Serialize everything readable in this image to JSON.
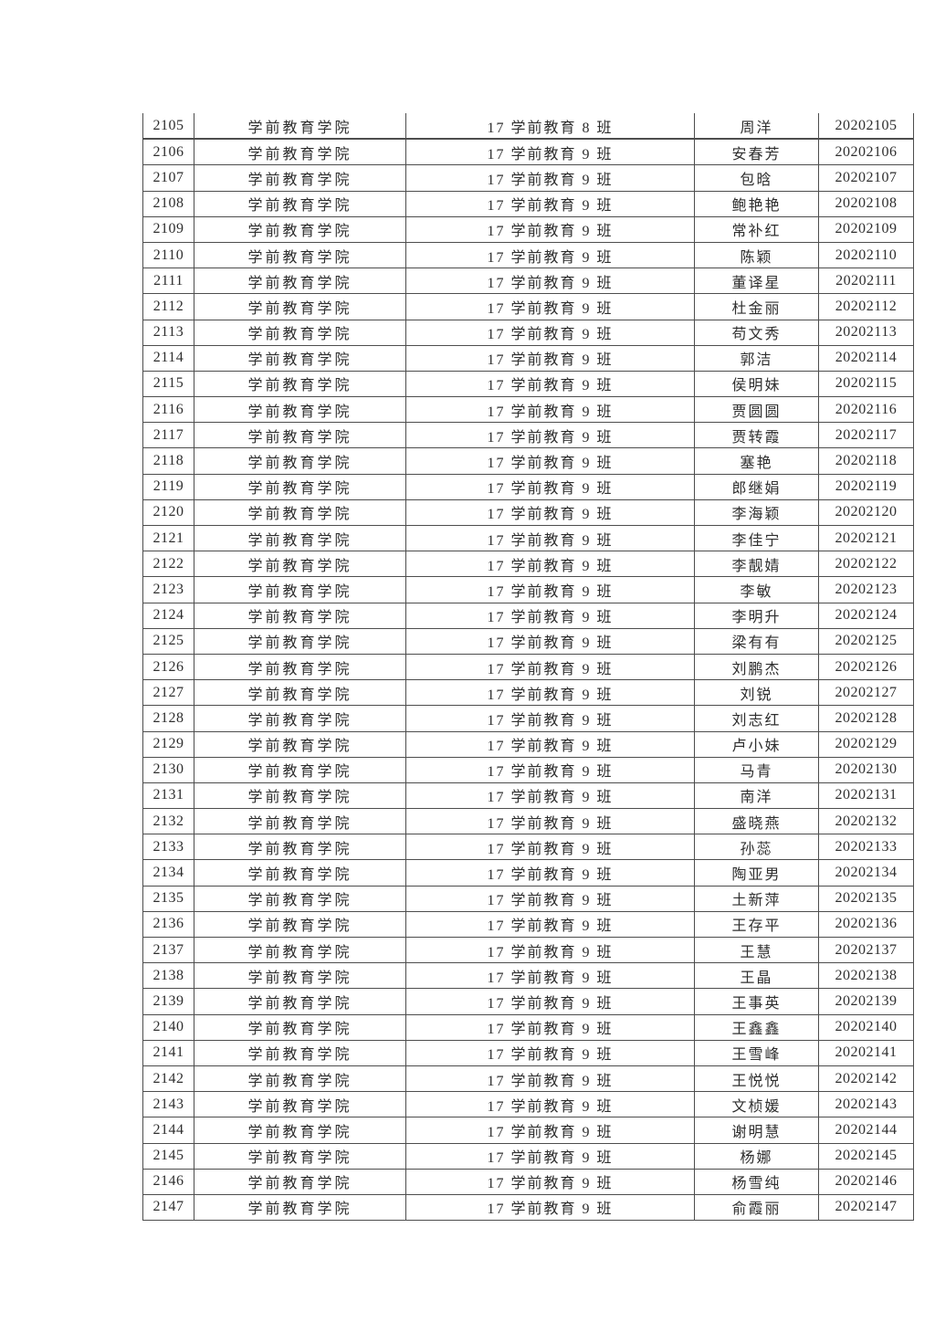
{
  "colors": {
    "background": "#ffffff",
    "text": "#2e2e2e",
    "table_border": "#4d4d4d"
  },
  "table": {
    "rows": [
      {
        "no": "2105",
        "college": "学前教育学院",
        "class": "17 学前教育 8 班",
        "name": "周洋",
        "student_id": "20202105"
      },
      {
        "no": "2106",
        "college": "学前教育学院",
        "class": "17 学前教育 9 班",
        "name": "安春芳",
        "student_id": "20202106"
      },
      {
        "no": "2107",
        "college": "学前教育学院",
        "class": "17 学前教育 9 班",
        "name": "包晗",
        "student_id": "20202107"
      },
      {
        "no": "2108",
        "college": "学前教育学院",
        "class": "17 学前教育 9 班",
        "name": "鲍艳艳",
        "student_id": "20202108"
      },
      {
        "no": "2109",
        "college": "学前教育学院",
        "class": "17 学前教育 9 班",
        "name": "常补红",
        "student_id": "20202109"
      },
      {
        "no": "2110",
        "college": "学前教育学院",
        "class": "17 学前教育 9 班",
        "name": "陈颖",
        "student_id": "20202110"
      },
      {
        "no": "2111",
        "college": "学前教育学院",
        "class": "17 学前教育 9 班",
        "name": "董译星",
        "student_id": "20202111"
      },
      {
        "no": "2112",
        "college": "学前教育学院",
        "class": "17 学前教育 9 班",
        "name": "杜金丽",
        "student_id": "20202112"
      },
      {
        "no": "2113",
        "college": "学前教育学院",
        "class": "17 学前教育 9 班",
        "name": "苟文秀",
        "student_id": "20202113"
      },
      {
        "no": "2114",
        "college": "学前教育学院",
        "class": "17 学前教育 9 班",
        "name": "郭洁",
        "student_id": "20202114"
      },
      {
        "no": "2115",
        "college": "学前教育学院",
        "class": "17 学前教育 9 班",
        "name": "侯明妹",
        "student_id": "20202115"
      },
      {
        "no": "2116",
        "college": "学前教育学院",
        "class": "17 学前教育 9 班",
        "name": "贾圆圆",
        "student_id": "20202116"
      },
      {
        "no": "2117",
        "college": "学前教育学院",
        "class": "17 学前教育 9 班",
        "name": "贾转霞",
        "student_id": "20202117"
      },
      {
        "no": "2118",
        "college": "学前教育学院",
        "class": "17 学前教育 9 班",
        "name": "塞艳",
        "student_id": "20202118"
      },
      {
        "no": "2119",
        "college": "学前教育学院",
        "class": "17 学前教育 9 班",
        "name": "郎继娟",
        "student_id": "20202119"
      },
      {
        "no": "2120",
        "college": "学前教育学院",
        "class": "17 学前教育 9 班",
        "name": "李海颖",
        "student_id": "20202120"
      },
      {
        "no": "2121",
        "college": "学前教育学院",
        "class": "17 学前教育 9 班",
        "name": "李佳宁",
        "student_id": "20202121"
      },
      {
        "no": "2122",
        "college": "学前教育学院",
        "class": "17 学前教育 9 班",
        "name": "李靓婧",
        "student_id": "20202122"
      },
      {
        "no": "2123",
        "college": "学前教育学院",
        "class": "17 学前教育 9 班",
        "name": "李敏",
        "student_id": "20202123"
      },
      {
        "no": "2124",
        "college": "学前教育学院",
        "class": "17 学前教育 9 班",
        "name": "李明升",
        "student_id": "20202124"
      },
      {
        "no": "2125",
        "college": "学前教育学院",
        "class": "17 学前教育 9 班",
        "name": "梁有有",
        "student_id": "20202125"
      },
      {
        "no": "2126",
        "college": "学前教育学院",
        "class": "17 学前教育 9 班",
        "name": "刘鹏杰",
        "student_id": "20202126"
      },
      {
        "no": "2127",
        "college": "学前教育学院",
        "class": "17 学前教育 9 班",
        "name": "刘锐",
        "student_id": "20202127"
      },
      {
        "no": "2128",
        "college": "学前教育学院",
        "class": "17 学前教育 9 班",
        "name": "刘志红",
        "student_id": "20202128"
      },
      {
        "no": "2129",
        "college": "学前教育学院",
        "class": "17 学前教育 9 班",
        "name": "卢小妹",
        "student_id": "20202129"
      },
      {
        "no": "2130",
        "college": "学前教育学院",
        "class": "17 学前教育 9 班",
        "name": "马青",
        "student_id": "20202130"
      },
      {
        "no": "2131",
        "college": "学前教育学院",
        "class": "17 学前教育 9 班",
        "name": "南洋",
        "student_id": "20202131"
      },
      {
        "no": "2132",
        "college": "学前教育学院",
        "class": "17 学前教育 9 班",
        "name": "盛晓燕",
        "student_id": "20202132"
      },
      {
        "no": "2133",
        "college": "学前教育学院",
        "class": "17 学前教育 9 班",
        "name": "孙蕊",
        "student_id": "20202133"
      },
      {
        "no": "2134",
        "college": "学前教育学院",
        "class": "17 学前教育 9 班",
        "name": "陶亚男",
        "student_id": "20202134"
      },
      {
        "no": "2135",
        "college": "学前教育学院",
        "class": "17 学前教育 9 班",
        "name": "土新萍",
        "student_id": "20202135"
      },
      {
        "no": "2136",
        "college": "学前教育学院",
        "class": "17 学前教育 9 班",
        "name": "王存平",
        "student_id": "20202136"
      },
      {
        "no": "2137",
        "college": "学前教育学院",
        "class": "17 学前教育 9 班",
        "name": "王慧",
        "student_id": "20202137"
      },
      {
        "no": "2138",
        "college": "学前教育学院",
        "class": "17 学前教育 9 班",
        "name": "王晶",
        "student_id": "20202138"
      },
      {
        "no": "2139",
        "college": "学前教育学院",
        "class": "17 学前教育 9 班",
        "name": "王事英",
        "student_id": "20202139"
      },
      {
        "no": "2140",
        "college": "学前教育学院",
        "class": "17 学前教育 9 班",
        "name": "王鑫鑫",
        "student_id": "20202140"
      },
      {
        "no": "2141",
        "college": "学前教育学院",
        "class": "17 学前教育 9 班",
        "name": "王雪峰",
        "student_id": "20202141"
      },
      {
        "no": "2142",
        "college": "学前教育学院",
        "class": "17 学前教育 9 班",
        "name": "王悦悦",
        "student_id": "20202142"
      },
      {
        "no": "2143",
        "college": "学前教育学院",
        "class": "17 学前教育 9 班",
        "name": "文桢媛",
        "student_id": "20202143"
      },
      {
        "no": "2144",
        "college": "学前教育学院",
        "class": "17 学前教育 9 班",
        "name": "谢明慧",
        "student_id": "20202144"
      },
      {
        "no": "2145",
        "college": "学前教育学院",
        "class": "17 学前教育 9 班",
        "name": "杨娜",
        "student_id": "20202145"
      },
      {
        "no": "2146",
        "college": "学前教育学院",
        "class": "17 学前教育 9 班",
        "name": "杨雪纯",
        "student_id": "20202146"
      },
      {
        "no": "2147",
        "college": "学前教育学院",
        "class": "17 学前教育 9 班",
        "name": "俞霞丽",
        "student_id": "20202147"
      }
    ]
  }
}
